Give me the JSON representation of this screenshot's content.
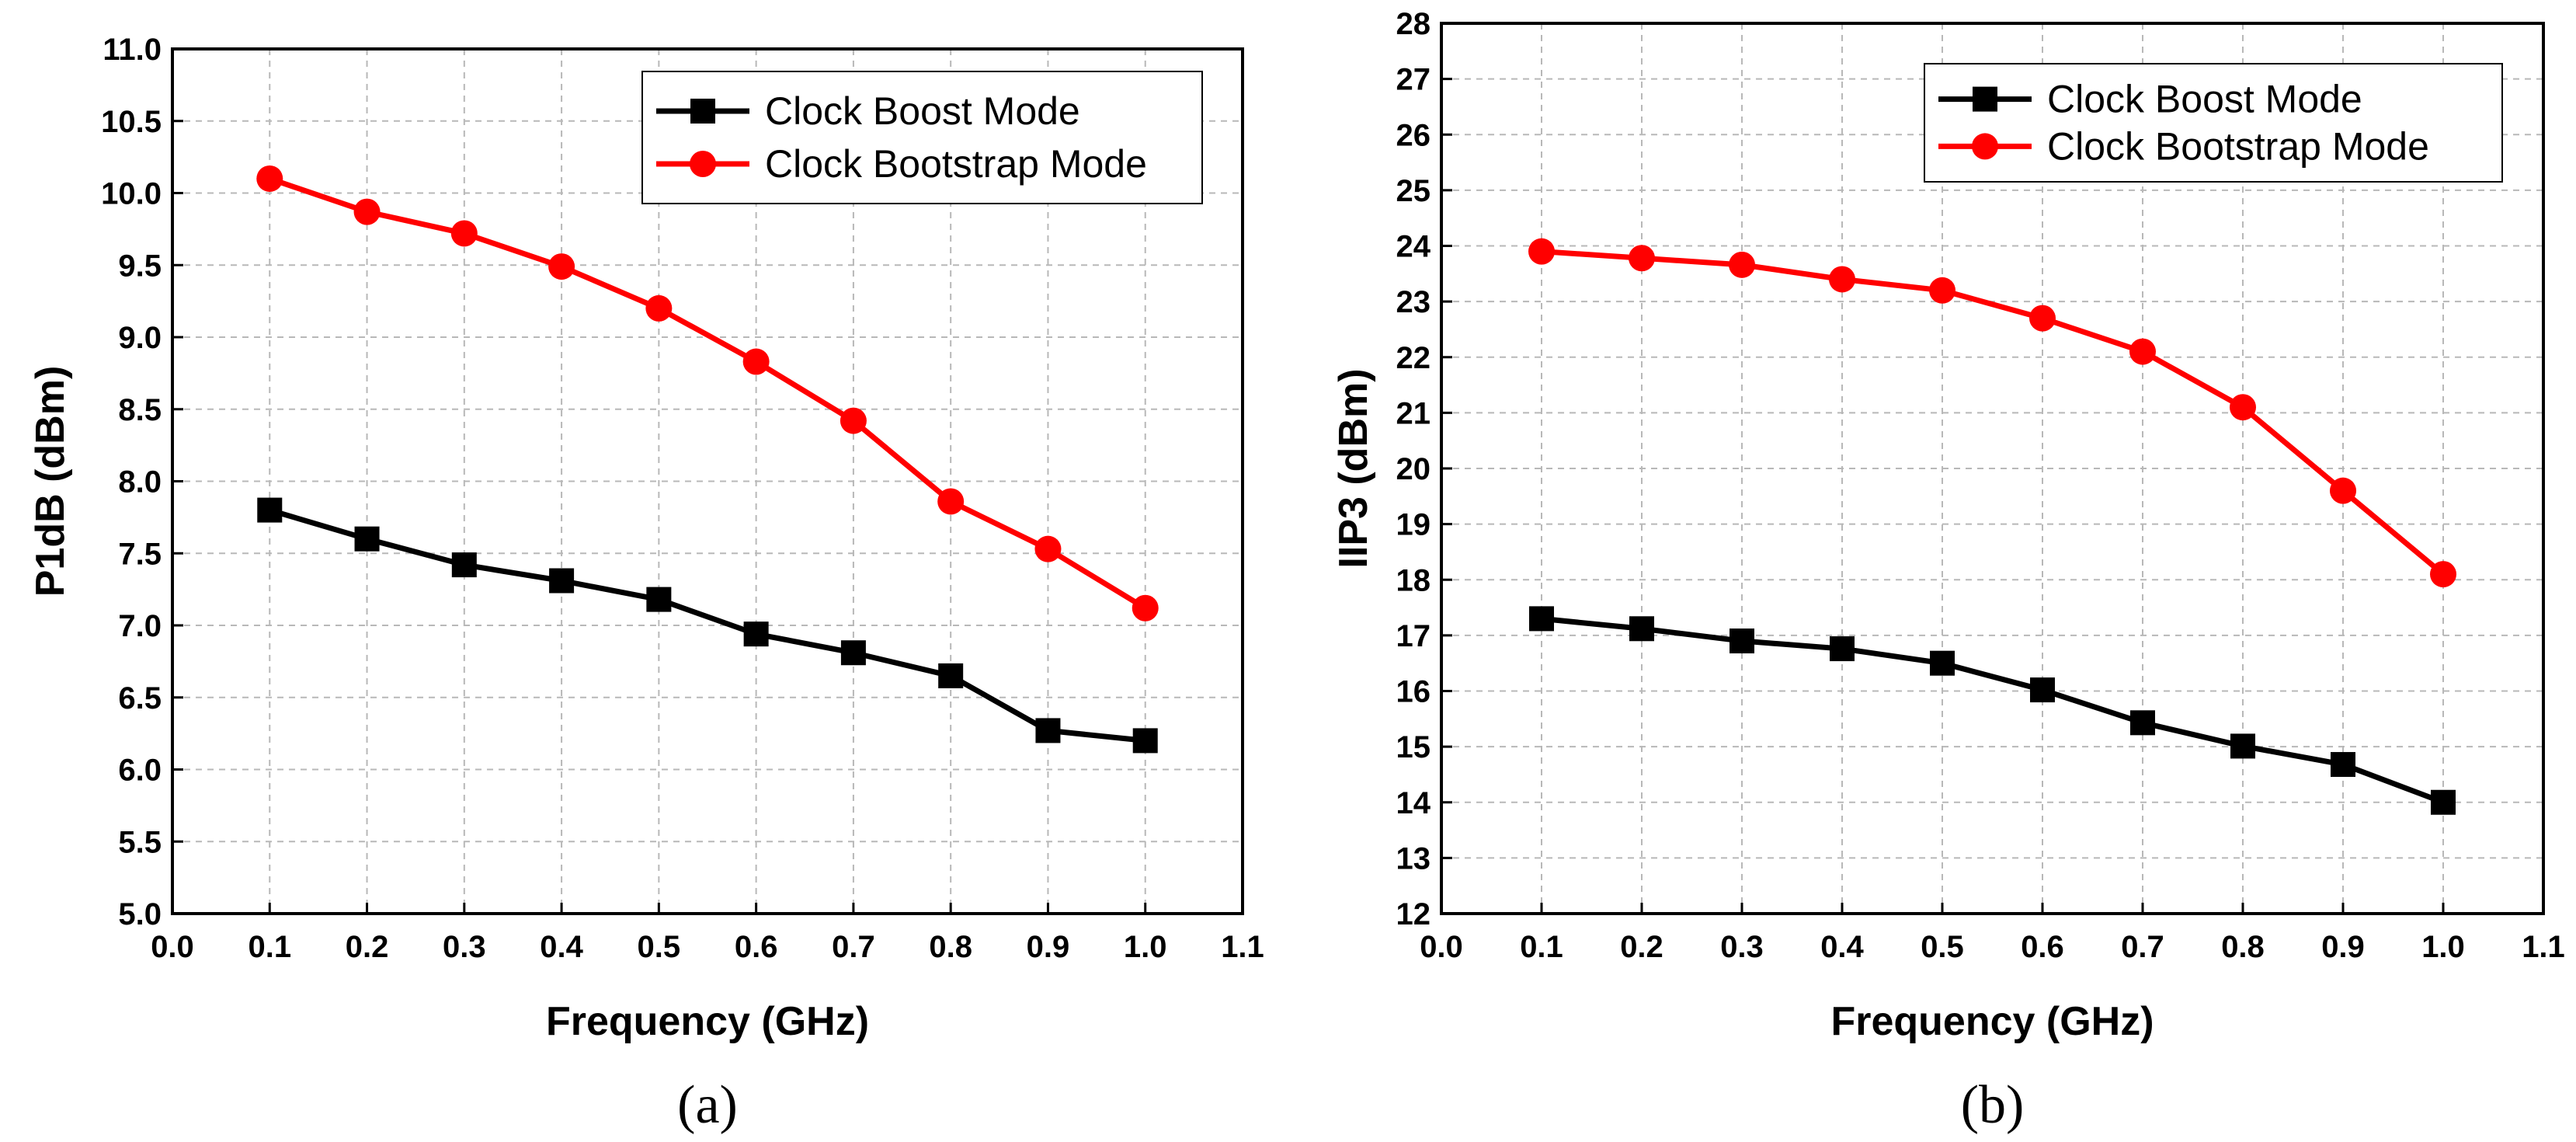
{
  "chart_data": [
    {
      "type": "line",
      "caption": "(a)",
      "xlabel": "Frequency (GHz)",
      "ylabel": "P1dB (dBm)",
      "xlim": [
        0.0,
        1.1
      ],
      "ylim": [
        5.0,
        11.0
      ],
      "xticks": [
        "0.0",
        "0.1",
        "0.2",
        "0.3",
        "0.4",
        "0.5",
        "0.6",
        "0.7",
        "0.8",
        "0.9",
        "1.0",
        "1.1"
      ],
      "yticks": [
        "5.0",
        "5.5",
        "6.0",
        "6.5",
        "7.0",
        "7.5",
        "8.0",
        "8.5",
        "9.0",
        "9.5",
        "10.0",
        "10.5",
        "11.0"
      ],
      "grid": true,
      "legend_position": "top-right",
      "x": [
        0.1,
        0.2,
        0.3,
        0.4,
        0.5,
        0.6,
        0.7,
        0.8,
        0.9,
        1.0
      ],
      "series": [
        {
          "name": "Clock Boost Mode",
          "color": "#000000",
          "marker": "square",
          "values": [
            7.8,
            7.6,
            7.42,
            7.31,
            7.18,
            6.94,
            6.81,
            6.65,
            6.27,
            6.2
          ]
        },
        {
          "name": "Clock Bootstrap Mode",
          "color": "#ff0000",
          "marker": "circle",
          "values": [
            10.1,
            9.87,
            9.72,
            9.49,
            9.2,
            8.83,
            8.42,
            7.86,
            7.53,
            7.12
          ]
        }
      ]
    },
    {
      "type": "line",
      "caption": "(b)",
      "xlabel": "Frequency (GHz)",
      "ylabel": "IIP3 (dBm)",
      "xlim": [
        0.0,
        1.1
      ],
      "ylim": [
        12,
        28
      ],
      "xticks": [
        "0.0",
        "0.1",
        "0.2",
        "0.3",
        "0.4",
        "0.5",
        "0.6",
        "0.7",
        "0.8",
        "0.9",
        "1.0",
        "1.1"
      ],
      "yticks": [
        "12",
        "13",
        "14",
        "15",
        "16",
        "17",
        "18",
        "19",
        "20",
        "21",
        "22",
        "23",
        "24",
        "25",
        "26",
        "27",
        "28"
      ],
      "grid": true,
      "legend_position": "top-right",
      "x": [
        0.1,
        0.2,
        0.3,
        0.4,
        0.5,
        0.6,
        0.7,
        0.8,
        0.9,
        1.0
      ],
      "series": [
        {
          "name": "Clock Boost Mode",
          "color": "#000000",
          "marker": "square",
          "values": [
            17.3,
            17.12,
            16.9,
            16.76,
            16.5,
            16.02,
            15.43,
            15.01,
            14.68,
            14.0
          ]
        },
        {
          "name": "Clock Bootstrap Mode",
          "color": "#ff0000",
          "marker": "circle",
          "values": [
            23.9,
            23.78,
            23.66,
            23.4,
            23.2,
            22.7,
            22.1,
            21.1,
            19.6,
            18.1
          ]
        }
      ]
    }
  ]
}
